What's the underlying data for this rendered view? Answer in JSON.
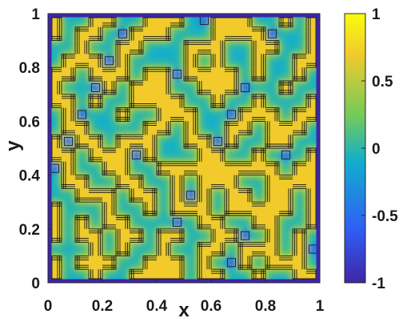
{
  "chart_data": {
    "type": "heatmap",
    "title": "",
    "xlabel": "x",
    "ylabel": "y",
    "xlim": [
      0,
      1
    ],
    "ylim": [
      0,
      1
    ],
    "x_ticks": [
      "0",
      "0.2",
      "0.4",
      "0.6",
      "0.8",
      "1"
    ],
    "y_ticks": [
      "0",
      "0.2",
      "0.4",
      "0.6",
      "0.8",
      "1"
    ],
    "colorbar": {
      "range": [
        -1,
        1
      ],
      "ticks": [
        "-1",
        "-0.5",
        "0",
        "0.5",
        "1"
      ],
      "colormap": "parula",
      "colors": [
        "#3e26a8",
        "#2f5ff5",
        "#11aecd",
        "#72cb59",
        "#f2cb2c",
        "#f9fb0e"
      ]
    },
    "contour_levels": [
      -0.8,
      -0.6,
      -0.4,
      -0.2,
      0,
      0.2,
      0.4,
      0.6,
      0.8
    ],
    "field_description": "Phase-separated field with values near +1 (yellow) and near 0 (teal), boundary u = -1 (dark blue)",
    "grid": {
      "rows": 20,
      "cols": 20,
      "row_order": "top-to-bottom (y from 1 to 0)",
      "values": [
        [
          1,
          0,
          0,
          1,
          1,
          0,
          0,
          1,
          1,
          1,
          0,
          0,
          1,
          1,
          1,
          0,
          0,
          1,
          0,
          1
        ],
        [
          1,
          0,
          1,
          1,
          0,
          0,
          1,
          1,
          1,
          0,
          0,
          0,
          1,
          1,
          1,
          1,
          0,
          0,
          0,
          1
        ],
        [
          0,
          0,
          1,
          0,
          0,
          1,
          1,
          0,
          0,
          0,
          1,
          1,
          1,
          0,
          0,
          1,
          1,
          0,
          0,
          1
        ],
        [
          0,
          1,
          1,
          1,
          0,
          1,
          0,
          0,
          0,
          0,
          1,
          0,
          1,
          0,
          0,
          1,
          0,
          0,
          1,
          1
        ],
        [
          1,
          1,
          0,
          1,
          1,
          1,
          0,
          1,
          1,
          0,
          1,
          1,
          1,
          1,
          0,
          1,
          0,
          0,
          1,
          0
        ],
        [
          1,
          0,
          0,
          0,
          1,
          0,
          1,
          1,
          1,
          0,
          0,
          1,
          1,
          1,
          0,
          0,
          0,
          1,
          0,
          0
        ],
        [
          1,
          1,
          0,
          1,
          0,
          0,
          1,
          1,
          1,
          1,
          0,
          0,
          1,
          0,
          0,
          1,
          0,
          0,
          0,
          1
        ],
        [
          0,
          1,
          0,
          0,
          0,
          1,
          0,
          0,
          1,
          1,
          1,
          0,
          0,
          0,
          1,
          1,
          1,
          0,
          1,
          1
        ],
        [
          0,
          1,
          1,
          0,
          0,
          0,
          0,
          1,
          1,
          0,
          1,
          0,
          0,
          1,
          1,
          0,
          1,
          1,
          1,
          0
        ],
        [
          1,
          0,
          1,
          1,
          0,
          1,
          1,
          1,
          0,
          0,
          1,
          1,
          0,
          1,
          0,
          0,
          1,
          1,
          0,
          0
        ],
        [
          1,
          1,
          0,
          1,
          1,
          1,
          0,
          1,
          0,
          0,
          0,
          1,
          1,
          0,
          0,
          1,
          0,
          0,
          0,
          1
        ],
        [
          0,
          1,
          0,
          0,
          1,
          1,
          0,
          0,
          1,
          1,
          1,
          1,
          1,
          1,
          1,
          1,
          1,
          0,
          1,
          1
        ],
        [
          0,
          1,
          1,
          0,
          0,
          1,
          1,
          0,
          0,
          1,
          0,
          1,
          1,
          1,
          0,
          0,
          1,
          1,
          1,
          1
        ],
        [
          0,
          0,
          1,
          1,
          1,
          0,
          1,
          1,
          0,
          1,
          0,
          1,
          0,
          1,
          1,
          0,
          1,
          1,
          0,
          1
        ],
        [
          1,
          0,
          0,
          0,
          1,
          0,
          0,
          1,
          0,
          1,
          1,
          1,
          0,
          1,
          1,
          1,
          1,
          1,
          0,
          1
        ],
        [
          1,
          0,
          1,
          0,
          1,
          1,
          0,
          0,
          0,
          0,
          0,
          1,
          1,
          0,
          0,
          1,
          1,
          0,
          0,
          1
        ],
        [
          1,
          0,
          1,
          1,
          0,
          1,
          1,
          0,
          1,
          1,
          0,
          0,
          1,
          1,
          0,
          0,
          1,
          0,
          1,
          0
        ],
        [
          0,
          0,
          0,
          1,
          0,
          1,
          0,
          0,
          1,
          0,
          0,
          1,
          1,
          0,
          1,
          1,
          1,
          0,
          1,
          0
        ],
        [
          1,
          0,
          1,
          1,
          1,
          0,
          0,
          1,
          1,
          1,
          0,
          1,
          0,
          0,
          1,
          0,
          1,
          1,
          1,
          0
        ],
        [
          1,
          0,
          0,
          1,
          0,
          0,
          1,
          1,
          1,
          1,
          0,
          1,
          1,
          0,
          0,
          1,
          0,
          0,
          1,
          1
        ]
      ]
    },
    "boundary_value": -1
  }
}
